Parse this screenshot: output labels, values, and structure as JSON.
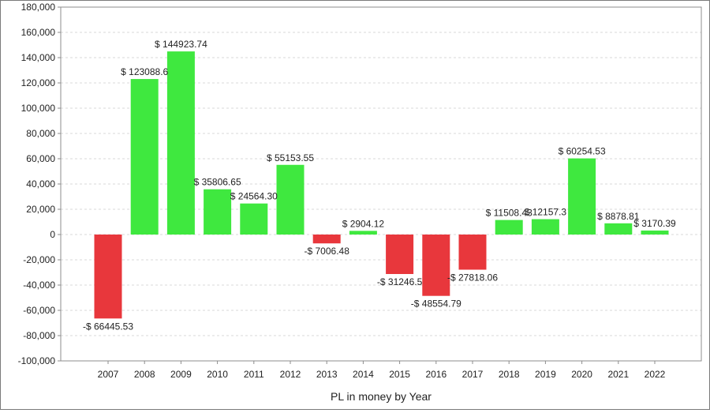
{
  "chart_data": {
    "type": "bar",
    "xlabel": "PL in money by Year",
    "ylabel": "",
    "ylim": [
      -100000,
      180000
    ],
    "ytick_step": 20000,
    "yticks": [
      "180,000",
      "160,000",
      "140,000",
      "120,000",
      "100,000",
      "80,000",
      "60,000",
      "40,000",
      "20,000",
      "0",
      "-20,000",
      "-40,000",
      "-60,000",
      "-80,000",
      "-100,000"
    ],
    "grid": true,
    "categories": [
      "2007",
      "2008",
      "2009",
      "2010",
      "2011",
      "2012",
      "2013",
      "2014",
      "2015",
      "2016",
      "2017",
      "2018",
      "2019",
      "2020",
      "2021",
      "2022"
    ],
    "values": [
      -66445.53,
      123088.6,
      144923.74,
      35806.65,
      24564.3,
      55153.55,
      -7006.48,
      2904.12,
      -31246.5,
      -48554.79,
      -27818.06,
      11508.43,
      12157.3,
      60254.53,
      8878.81,
      3170.39
    ],
    "data_labels": [
      "-$ 66445.53",
      "$ 123088.6",
      "$ 144923.74",
      "$ 35806.65",
      "$ 24564.30",
      "$ 55153.55",
      "-$ 7006.48",
      "$ 2904.12",
      "-$ 31246.5",
      "-$ 48554.79",
      "-$ 27818.06",
      "$ 11508.43",
      "$ 12157.3",
      "$ 60254.53",
      "$ 8878.81",
      "$ 3170.39"
    ],
    "colors": {
      "positive": "#3fe83f",
      "negative": "#e8373c"
    }
  }
}
